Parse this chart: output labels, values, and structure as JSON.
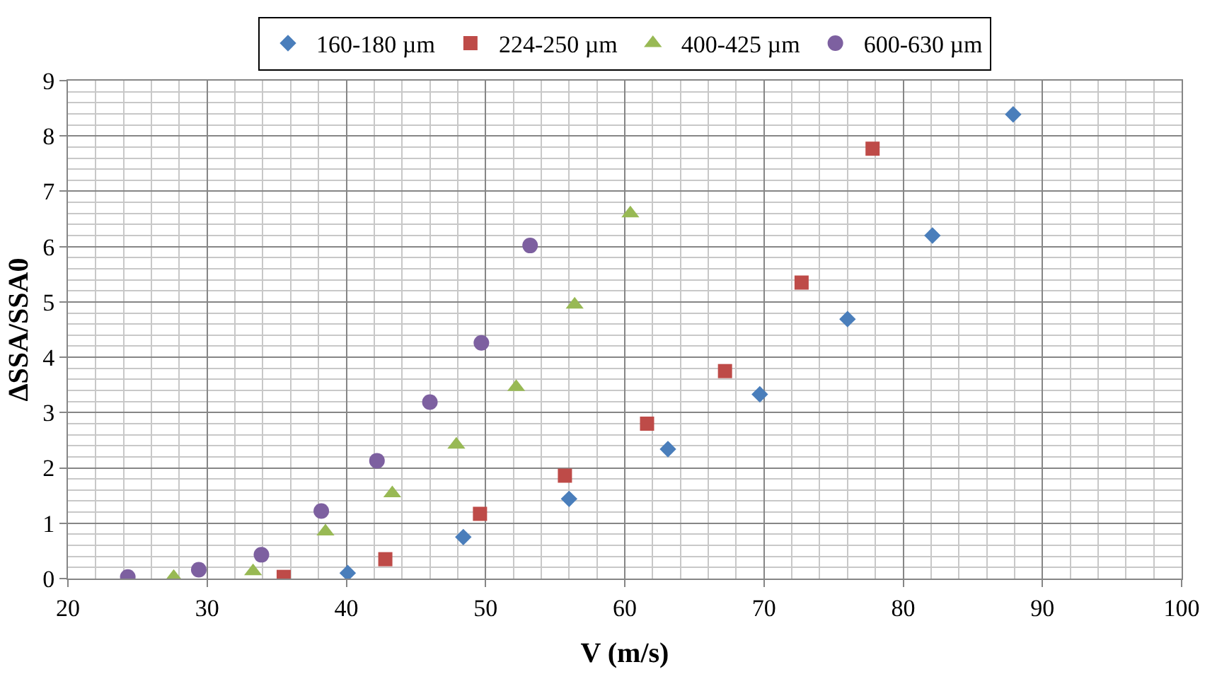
{
  "chart_data": {
    "type": "scatter",
    "xlabel": "V (m/s)",
    "ylabel": "ΔSSA/SSA0",
    "xlim": [
      20,
      100
    ],
    "xticks": [
      20,
      30,
      40,
      50,
      60,
      70,
      80,
      90,
      100
    ],
    "ylim": [
      0,
      9
    ],
    "yticks": [
      0,
      1,
      2,
      3,
      4,
      5,
      6,
      7,
      8,
      9
    ],
    "grid": true,
    "legend": "top",
    "series": [
      {
        "name": "160-180 µm",
        "color": "#4a7ebb",
        "marker": "diamond",
        "x": [
          40.1,
          48.4,
          56.0,
          63.1,
          69.7,
          76.0,
          82.1,
          87.9
        ],
        "values": [
          0.1,
          0.75,
          1.44,
          2.34,
          3.33,
          4.69,
          6.2,
          8.39
        ]
      },
      {
        "name": "224-250 µm",
        "color": "#be4b48",
        "marker": "square",
        "x": [
          35.5,
          42.8,
          49.6,
          55.7,
          61.6,
          67.2,
          72.7,
          77.8
        ],
        "values": [
          0.03,
          0.35,
          1.17,
          1.86,
          2.8,
          3.75,
          5.35,
          7.77
        ]
      },
      {
        "name": "400-425 µm",
        "color": "#98b954",
        "marker": "triangle",
        "x": [
          27.6,
          33.3,
          38.5,
          43.3,
          47.9,
          52.2,
          56.4,
          60.4
        ],
        "values": [
          0.03,
          0.13,
          0.85,
          1.54,
          2.42,
          3.46,
          4.95,
          6.6
        ]
      },
      {
        "name": "600-630 µm",
        "color": "#7d60a0",
        "marker": "circle",
        "x": [
          24.3,
          29.4,
          33.9,
          38.2,
          42.2,
          46.0,
          49.7,
          53.2
        ],
        "values": [
          0.03,
          0.16,
          0.43,
          1.22,
          2.13,
          3.19,
          4.26,
          6.02
        ]
      }
    ]
  }
}
